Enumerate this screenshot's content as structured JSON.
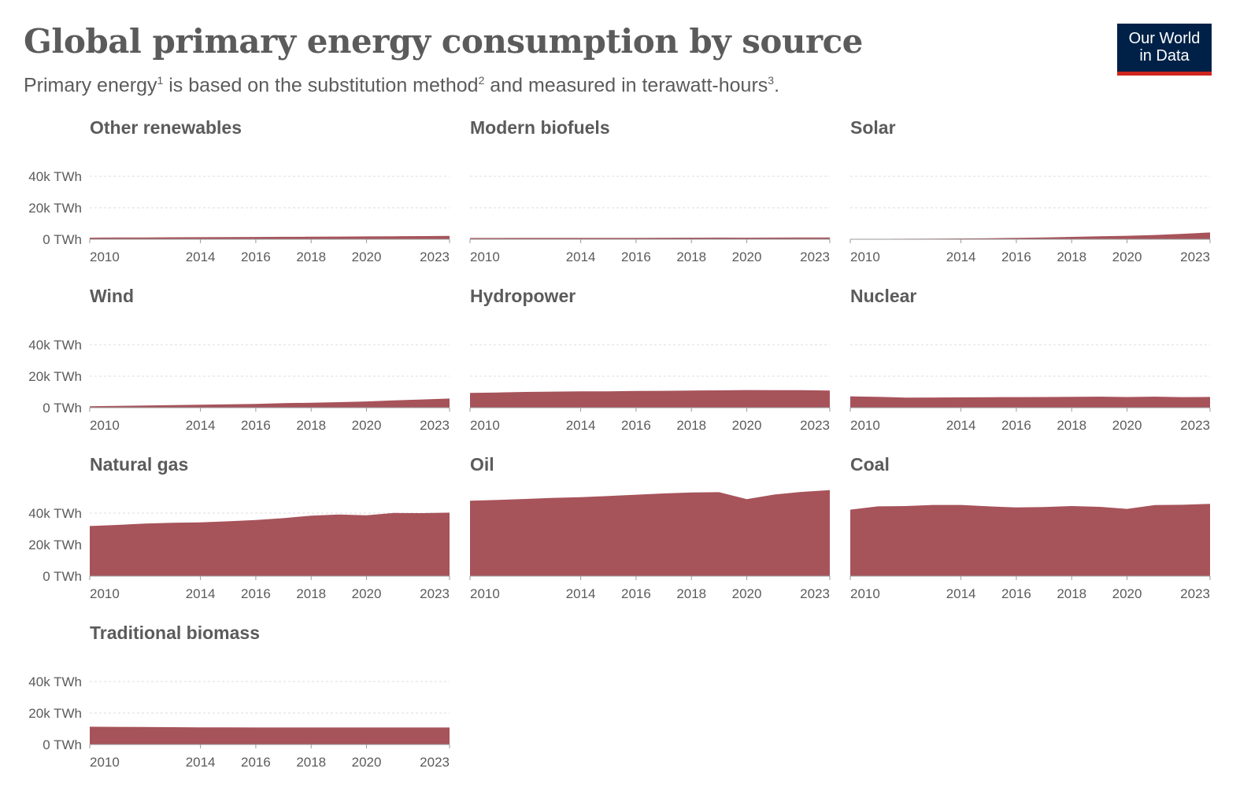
{
  "header": {
    "title": "Global primary energy consumption by source",
    "subtitle_parts": {
      "a": "Primary energy",
      "a_sup": "1",
      "b": " is based on the substitution method",
      "b_sup": "2",
      "c": " and measured in terawatt-hours",
      "c_sup": "3",
      "d": "."
    },
    "logo_line1": "Our World",
    "logo_line2": "in Data"
  },
  "colors": {
    "area": "#a7535a",
    "text": "#5b5b5b",
    "grid": "#dddddd",
    "axis": "#999999",
    "logo_bg": "#002147",
    "logo_accent": "#ce261e"
  },
  "chart_data": {
    "type": "area",
    "layout": "small-multiples",
    "unit": "TWh",
    "x": [
      2010,
      2011,
      2012,
      2013,
      2014,
      2015,
      2016,
      2017,
      2018,
      2019,
      2020,
      2021,
      2022,
      2023
    ],
    "x_ticks": [
      "2010",
      "2014",
      "2016",
      "2018",
      "2020",
      "2023"
    ],
    "y_ticks": [
      "0 TWh",
      "20k TWh",
      "40k TWh"
    ],
    "ylim": [
      0,
      40000
    ],
    "panels": [
      {
        "name": "Other renewables",
        "values": [
          1000,
          1080,
          1150,
          1230,
          1300,
          1380,
          1450,
          1530,
          1600,
          1700,
          1780,
          1900,
          2000,
          2100
        ]
      },
      {
        "name": "Modern biofuels",
        "values": [
          800,
          810,
          830,
          850,
          880,
          900,
          920,
          950,
          1000,
          1050,
          980,
          1050,
          1100,
          1150
        ]
      },
      {
        "name": "Solar",
        "values": [
          90,
          180,
          290,
          390,
          500,
          660,
          880,
          1150,
          1520,
          1840,
          2210,
          2700,
          3430,
          4300
        ]
      },
      {
        "name": "Wind",
        "values": [
          900,
          1160,
          1350,
          1640,
          1830,
          2120,
          2400,
          2830,
          3150,
          3500,
          3950,
          4620,
          5200,
          5800
        ]
      },
      {
        "name": "Hydropower",
        "values": [
          9400,
          9650,
          10000,
          10200,
          10400,
          10400,
          10600,
          10700,
          10900,
          11000,
          11200,
          11100,
          11100,
          10900
        ]
      },
      {
        "name": "Nuclear",
        "values": [
          7200,
          6900,
          6400,
          6450,
          6550,
          6650,
          6700,
          6750,
          6850,
          7000,
          6750,
          7000,
          6700,
          6800
        ]
      },
      {
        "name": "Natural gas",
        "values": [
          31800,
          32500,
          33400,
          33900,
          34100,
          34800,
          35600,
          36800,
          38400,
          39100,
          38600,
          40100,
          40000,
          40300
        ]
      },
      {
        "name": "Oil",
        "values": [
          47900,
          48400,
          49000,
          49700,
          50100,
          50900,
          51700,
          52500,
          53100,
          53300,
          48900,
          51800,
          53500,
          54600
        ]
      },
      {
        "name": "Coal",
        "values": [
          42200,
          44300,
          44500,
          45200,
          45200,
          44300,
          43600,
          43900,
          44500,
          44000,
          42700,
          45100,
          45300,
          45900
        ]
      },
      {
        "name": "Traditional biomass",
        "values": [
          11300,
          11200,
          11100,
          11000,
          10900,
          10900,
          10800,
          10800,
          10800,
          10800,
          10800,
          10800,
          10800,
          10800
        ]
      }
    ]
  }
}
